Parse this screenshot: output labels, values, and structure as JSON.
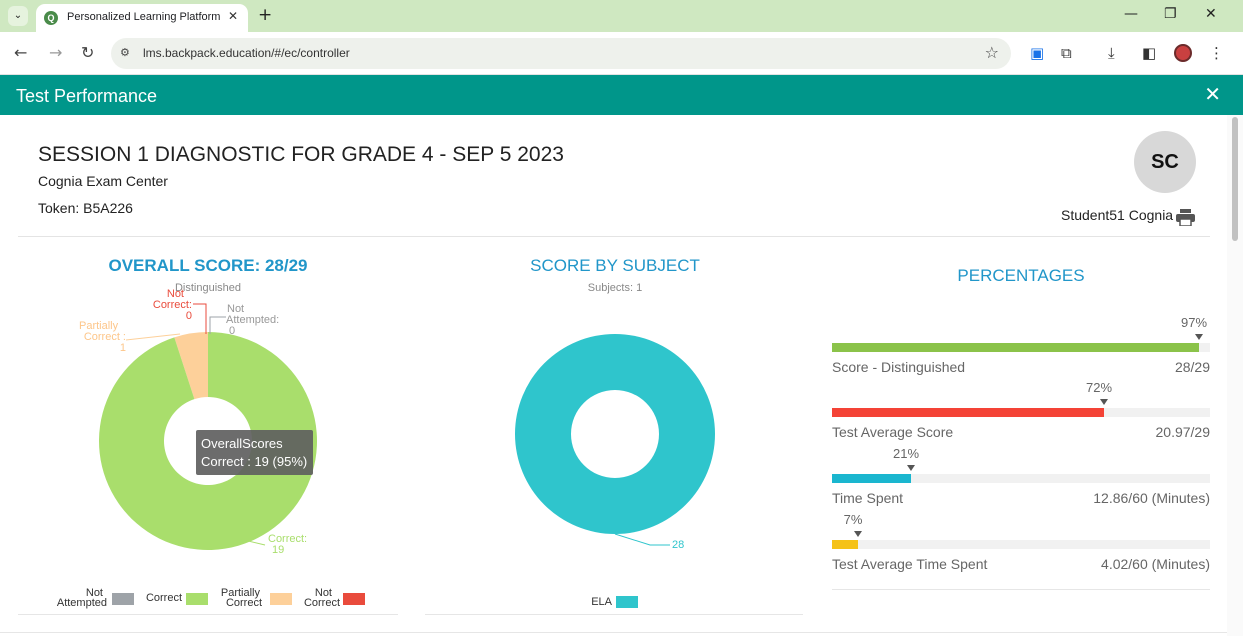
{
  "browser": {
    "tab_title": "Personalized Learning Platform",
    "url": "lms.backpack.education/#/ec/controller",
    "icons": [
      "tab-search-icon",
      "close-icon",
      "plus-icon",
      "minimize-icon",
      "restore-icon",
      "back-icon",
      "forward-icon",
      "reload-icon",
      "site-settings-icon",
      "star-icon",
      "extension-icon",
      "puzzle-icon",
      "download-icon",
      "sidebar-icon",
      "menu-dots-icon"
    ]
  },
  "app": {
    "header_title": "Test Performance",
    "close_label": "✕",
    "accent_color": "#00968a"
  },
  "test": {
    "title": "SESSION 1 DIAGNOSTIC FOR GRADE 4 - SEP 5 2023",
    "center": "Cognia Exam Center",
    "token": "Token: B5A226",
    "avatar_initials": "SC",
    "student_name": "Student51 Cognia"
  },
  "overall": {
    "title": "OVERALL SCORE:  28/29",
    "subtitle": "Distinguished",
    "annotations": {
      "not_correct": [
        "Not",
        "Correct:",
        "0"
      ],
      "not_attempted": [
        "Not",
        "Attempted:",
        "0"
      ],
      "partially_correct": [
        "Partially",
        "Correct :",
        "1"
      ],
      "correct": [
        "Correct:",
        "19"
      ]
    },
    "tooltip_title": "OverallScores",
    "tooltip_value": "Correct : 19 (95%)",
    "legend": [
      {
        "label_line1": "Not",
        "label_line2": "Attempted",
        "color": "#9ea3a8"
      },
      {
        "label_line1": "Correct",
        "label_line2": "",
        "color": "#a9de6c"
      },
      {
        "label_line1": "Partially",
        "label_line2": "Correct",
        "color": "#fdd09a"
      },
      {
        "label_line1": "Not",
        "label_line2": "Correct",
        "color": "#e94b3c"
      }
    ]
  },
  "subject": {
    "title": "SCORE BY SUBJECT",
    "subtitle": "Subjects: 1",
    "slice_label": "28",
    "legend_label": "ELA",
    "color": "#2fc5cc"
  },
  "percentages": {
    "title": "PERCENTAGES",
    "rows": [
      {
        "pct_text": "97%",
        "fraction": 0.97,
        "name": "Score - Distinguished",
        "value": "28/29",
        "color": "#8bc34a"
      },
      {
        "pct_text": "72%",
        "fraction": 0.72,
        "name": "Test Average Score",
        "value": "20.97/29",
        "color": "#f44336"
      },
      {
        "pct_text": "21%",
        "fraction": 0.21,
        "name": "Time Spent",
        "value": "12.86/60 (Minutes)",
        "color": "#1ab6cf"
      },
      {
        "pct_text": "7%",
        "fraction": 0.07,
        "name": "Test Average Time Spent",
        "value": "4.02/60 (Minutes)",
        "color": "#f5c218"
      }
    ]
  },
  "chart_data": [
    {
      "type": "pie",
      "title": "OVERALL SCORE:  28/29",
      "subtitle": "Distinguished",
      "categories": [
        "Not Attempted",
        "Correct",
        "Partially Correct",
        "Not Correct"
      ],
      "values": [
        0,
        19,
        1,
        0
      ],
      "colors": [
        "#9ea3a8",
        "#a9de6c",
        "#fdd09a",
        "#e94b3c"
      ],
      "donut": true
    },
    {
      "type": "pie",
      "title": "SCORE BY SUBJECT",
      "subtitle": "Subjects: 1",
      "categories": [
        "ELA"
      ],
      "values": [
        28
      ],
      "colors": [
        "#2fc5cc"
      ],
      "donut": true
    }
  ]
}
